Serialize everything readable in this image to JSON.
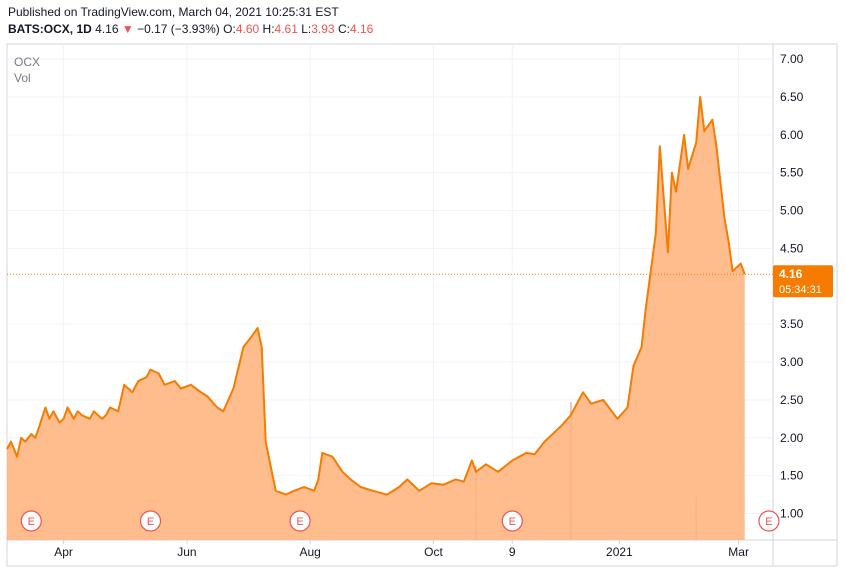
{
  "header": {
    "published": "Published on TradingView.com, March 04, 2021 10:25:31 EST",
    "symbol": "BATS:OCX, 1D",
    "last": "4.16",
    "change_arrow": "▼",
    "change": "−0.17 (−3.93%)",
    "o_label": "O:",
    "o_value": "4.60",
    "h_label": "H:",
    "h_value": "4.61",
    "l_label": "L:",
    "l_value": "3.93",
    "c_label": "C:",
    "c_value": "4.16"
  },
  "legend": {
    "ticker": "OCX",
    "vol": "Vol"
  },
  "last_price_tag": {
    "price": "4.16",
    "countdown": "05:34:31"
  },
  "colors": {
    "line": "#f57c00",
    "fill": "#ffb27a",
    "tag": "#f57c00",
    "earnings": "#ef5350"
  },
  "earnings_marker": "E",
  "chart_data": {
    "type": "area",
    "ylim": [
      0.65,
      7.2
    ],
    "y_ticks": [
      "1.00",
      "1.50",
      "2.00",
      "2.50",
      "3.00",
      "3.50",
      "4.50",
      "5.00",
      "5.50",
      "6.00",
      "6.50",
      "7.00"
    ],
    "x_ticks": [
      "Apr",
      "Jun",
      "Aug",
      "Oct",
      "9",
      "2021",
      "Mar"
    ],
    "x_tick_dates": [
      "2020-04-01",
      "2020-06-01",
      "2020-08-01",
      "2020-10-01",
      "2020-11-09",
      "2021-01-01",
      "2021-03-01"
    ],
    "earnings_dates": [
      "2020-03-16",
      "2020-05-14",
      "2020-07-27",
      "2020-11-09",
      "2021-03-16"
    ],
    "series": [
      {
        "x": [
          "2020-03-04",
          "2020-03-06",
          "2020-03-09",
          "2020-03-11",
          "2020-03-13",
          "2020-03-16",
          "2020-03-18",
          "2020-03-20",
          "2020-03-23",
          "2020-03-25",
          "2020-03-27",
          "2020-03-30",
          "2020-04-01",
          "2020-04-03",
          "2020-04-06",
          "2020-04-08",
          "2020-04-10",
          "2020-04-14",
          "2020-04-16",
          "2020-04-20",
          "2020-04-22",
          "2020-04-24",
          "2020-04-28",
          "2020-05-01",
          "2020-05-05",
          "2020-05-08",
          "2020-05-12",
          "2020-05-14",
          "2020-05-18",
          "2020-05-21",
          "2020-05-26",
          "2020-05-29",
          "2020-06-03",
          "2020-06-08",
          "2020-06-11",
          "2020-06-16",
          "2020-06-19",
          "2020-06-24",
          "2020-06-29",
          "2020-07-02",
          "2020-07-06",
          "2020-07-08",
          "2020-07-10",
          "2020-07-13",
          "2020-07-15",
          "2020-07-20",
          "2020-07-24",
          "2020-07-29",
          "2020-08-03",
          "2020-08-05",
          "2020-08-07",
          "2020-08-12",
          "2020-08-17",
          "2020-08-21",
          "2020-08-26",
          "2020-09-01",
          "2020-09-08",
          "2020-09-14",
          "2020-09-18",
          "2020-09-24",
          "2020-09-30",
          "2020-10-06",
          "2020-10-12",
          "2020-10-16",
          "2020-10-20",
          "2020-10-22",
          "2020-10-27",
          "2020-11-02",
          "2020-11-09",
          "2020-11-16",
          "2020-11-20",
          "2020-11-25",
          "2020-12-01",
          "2020-12-03",
          "2020-12-08",
          "2020-12-14",
          "2020-12-18",
          "2020-12-24",
          "2020-12-31",
          "2021-01-05",
          "2021-01-08",
          "2021-01-12",
          "2021-01-14",
          "2021-01-19",
          "2021-01-21",
          "2021-01-25",
          "2021-01-27",
          "2021-01-29",
          "2021-02-02",
          "2021-02-04",
          "2021-02-08",
          "2021-02-10",
          "2021-02-12",
          "2021-02-16",
          "2021-02-18",
          "2021-02-22",
          "2021-02-24",
          "2021-02-26",
          "2021-03-02",
          "2021-03-04"
        ],
        "values": [
          1.85,
          1.95,
          1.75,
          2.0,
          1.95,
          2.05,
          2.0,
          2.15,
          2.4,
          2.25,
          2.35,
          2.2,
          2.25,
          2.4,
          2.25,
          2.35,
          2.3,
          2.25,
          2.35,
          2.25,
          2.3,
          2.4,
          2.35,
          2.7,
          2.6,
          2.75,
          2.8,
          2.9,
          2.85,
          2.7,
          2.75,
          2.65,
          2.7,
          2.6,
          2.55,
          2.4,
          2.35,
          2.65,
          3.2,
          3.3,
          3.45,
          3.2,
          1.95,
          1.55,
          1.3,
          1.25,
          1.3,
          1.35,
          1.3,
          1.45,
          1.8,
          1.75,
          1.55,
          1.45,
          1.35,
          1.3,
          1.25,
          1.35,
          1.45,
          1.3,
          1.4,
          1.38,
          1.45,
          1.42,
          1.7,
          1.55,
          1.65,
          1.55,
          1.7,
          1.8,
          1.78,
          1.95,
          2.1,
          2.15,
          2.3,
          2.6,
          2.45,
          2.5,
          2.25,
          2.4,
          2.95,
          3.2,
          3.7,
          4.7,
          5.85,
          4.45,
          5.5,
          5.25,
          6.0,
          5.55,
          5.9,
          6.5,
          6.05,
          6.2,
          5.85,
          4.9,
          4.6,
          4.2,
          4.3,
          4.16
        ]
      }
    ],
    "volume": {
      "x": [
        "2020-10-22",
        "2020-12-08",
        "2021-02-08"
      ],
      "values": [
        1.4,
        2.6,
        0.8
      ]
    }
  }
}
